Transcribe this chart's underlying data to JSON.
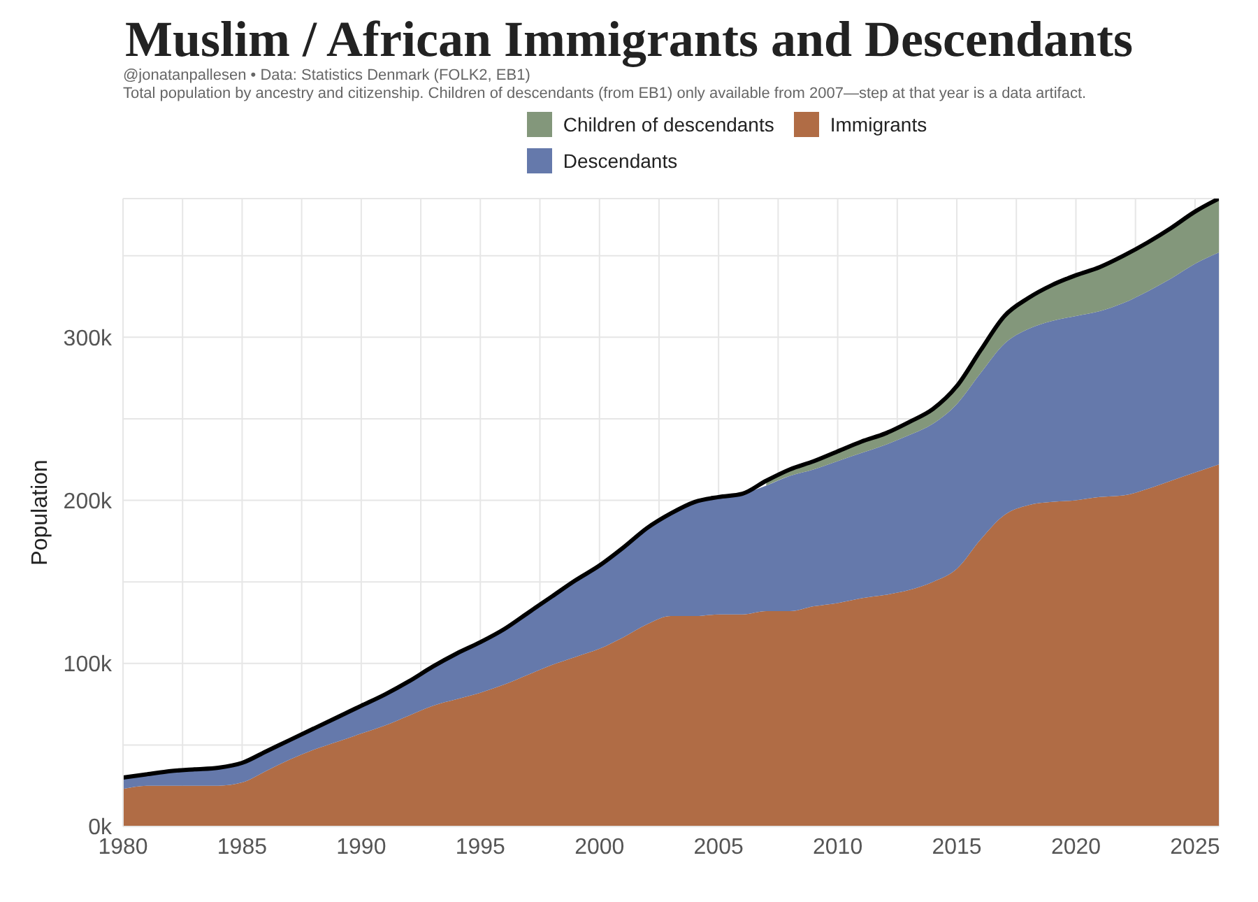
{
  "chart_data": {
    "type": "area",
    "stacked": true,
    "title": "Muslim / African Immigrants and Descendants",
    "subtitle": "@jonatanpallesen • Data: Statistics Denmark (FOLK2, EB1)",
    "annotations": [
      "Total population by ancestry and citizenship. Children of descendants (from EB1) only available from 2007—step at that year is a data artifact."
    ],
    "ylabel": "Population",
    "legend": "top",
    "grid": true,
    "x": [
      1980,
      1981,
      1982,
      1983,
      1984,
      1985,
      1986,
      1987,
      1988,
      1989,
      1990,
      1991,
      1992,
      1993,
      1994,
      1995,
      1996,
      1997,
      1998,
      1999,
      2000,
      2001,
      2002,
      2003,
      2004,
      2005,
      2006,
      2007,
      2008,
      2009,
      2010,
      2011,
      2012,
      2013,
      2014,
      2015,
      2016,
      2017,
      2018,
      2019,
      2020,
      2021,
      2022,
      2023,
      2024,
      2025,
      2026
    ],
    "series": [
      {
        "name": "Immigrants",
        "color": "#b06c45",
        "values": [
          23000,
          25000,
          25000,
          25000,
          25000,
          27000,
          34000,
          41000,
          47000,
          52000,
          57000,
          62000,
          68000,
          74000,
          78000,
          82000,
          87000,
          93000,
          99000,
          104000,
          109000,
          116000,
          124000,
          129000,
          129000,
          130000,
          130000,
          132000,
          132000,
          135000,
          137000,
          140000,
          142000,
          145000,
          150000,
          158000,
          176000,
          191000,
          197000,
          199000,
          200000,
          202000,
          203000,
          207000,
          212000,
          217000,
          222000
        ]
      },
      {
        "name": "Descendants",
        "color": "#6579ab",
        "values": [
          7000,
          7000,
          9000,
          10000,
          11000,
          12000,
          12000,
          12000,
          13000,
          15000,
          17000,
          19000,
          21000,
          24000,
          28000,
          31000,
          34000,
          38000,
          42000,
          47000,
          51000,
          55000,
          59000,
          63000,
          70000,
          72000,
          74000,
          77000,
          83000,
          84000,
          87000,
          89000,
          92000,
          95000,
          97000,
          101000,
          102000,
          105000,
          108000,
          111000,
          113000,
          114000,
          118000,
          121000,
          124000,
          128000,
          130000
        ]
      },
      {
        "name": "Children of descendants",
        "color": "#83977b",
        "values": [
          null,
          null,
          null,
          null,
          null,
          null,
          null,
          null,
          null,
          null,
          null,
          null,
          null,
          null,
          null,
          null,
          null,
          null,
          null,
          null,
          null,
          null,
          null,
          null,
          null,
          null,
          null,
          3000,
          4000,
          5000,
          6000,
          7000,
          7000,
          8000,
          9000,
          11000,
          14000,
          17000,
          19000,
          22000,
          25000,
          27000,
          29000,
          30000,
          31000,
          32000,
          33000
        ]
      },
      {
        "type": "line",
        "color": "#000000",
        "values": [
          30000,
          32000,
          34000,
          35000,
          36000,
          39000,
          46000,
          53000,
          60000,
          67000,
          74000,
          81000,
          89000,
          98000,
          106000,
          113000,
          121000,
          131000,
          141000,
          151000,
          160000,
          171000,
          183000,
          192000,
          199000,
          202000,
          204000,
          212000,
          219000,
          224000,
          230000,
          236000,
          241000,
          248000,
          256000,
          270000,
          292000,
          313000,
          324000,
          332000,
          338000,
          343000,
          350000,
          358000,
          367000,
          377000,
          385000
        ]
      }
    ],
    "xlim": [
      1980,
      2026
    ],
    "xticks": [
      1980,
      {
        "value": 1982.5,
        "label": null
      },
      1985,
      {
        "value": 1987.5,
        "label": null
      },
      1990,
      {
        "value": 1992.5,
        "label": null
      },
      1995,
      {
        "value": 1997.5,
        "label": null
      },
      2000,
      {
        "value": 2002.5,
        "label": null
      },
      2005,
      {
        "value": 2007.5,
        "label": null
      },
      2010,
      {
        "value": 2012.5,
        "label": null
      },
      2015,
      {
        "value": 2017.5,
        "label": null
      },
      2020,
      {
        "value": 2022.5,
        "label": null
      },
      2025
    ],
    "ylim": [
      0,
      385000
    ],
    "yticks": [
      {
        "value": 0,
        "label": "0k"
      },
      {
        "value": 50000,
        "label": null
      },
      {
        "value": 100000,
        "label": "100k"
      },
      {
        "value": 150000,
        "label": null
      },
      {
        "value": 200000,
        "label": "200k"
      },
      {
        "value": 250000,
        "label": null
      },
      {
        "value": 300000,
        "label": "300k"
      },
      {
        "value": 350000,
        "label": null
      }
    ]
  }
}
